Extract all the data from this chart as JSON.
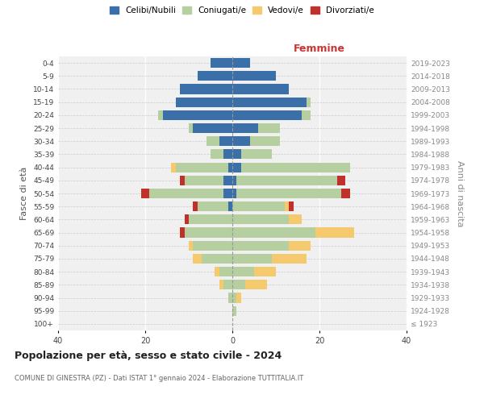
{
  "age_groups": [
    "100+",
    "95-99",
    "90-94",
    "85-89",
    "80-84",
    "75-79",
    "70-74",
    "65-69",
    "60-64",
    "55-59",
    "50-54",
    "45-49",
    "40-44",
    "35-39",
    "30-34",
    "25-29",
    "20-24",
    "15-19",
    "10-14",
    "5-9",
    "0-4"
  ],
  "birth_years": [
    "≤ 1923",
    "1924-1928",
    "1929-1933",
    "1934-1938",
    "1939-1943",
    "1944-1948",
    "1949-1953",
    "1954-1958",
    "1959-1963",
    "1964-1968",
    "1969-1973",
    "1974-1978",
    "1979-1983",
    "1984-1988",
    "1989-1993",
    "1994-1998",
    "1999-2003",
    "2004-2008",
    "2009-2013",
    "2014-2018",
    "2019-2023"
  ],
  "male": {
    "celibi": [
      0,
      0,
      0,
      0,
      0,
      0,
      0,
      0,
      0,
      1,
      2,
      2,
      1,
      2,
      3,
      9,
      16,
      13,
      12,
      8,
      5
    ],
    "coniugati": [
      0,
      0,
      1,
      2,
      3,
      7,
      9,
      11,
      10,
      7,
      17,
      9,
      12,
      3,
      3,
      1,
      1,
      0,
      0,
      0,
      0
    ],
    "vedovi": [
      0,
      0,
      0,
      1,
      1,
      2,
      1,
      0,
      0,
      0,
      0,
      0,
      1,
      0,
      0,
      0,
      0,
      0,
      0,
      0,
      0
    ],
    "divorziati": [
      0,
      0,
      0,
      0,
      0,
      0,
      0,
      1,
      1,
      1,
      2,
      1,
      0,
      0,
      0,
      0,
      0,
      0,
      0,
      0,
      0
    ]
  },
  "female": {
    "nubili": [
      0,
      0,
      0,
      0,
      0,
      0,
      0,
      0,
      0,
      0,
      1,
      1,
      2,
      2,
      4,
      6,
      16,
      17,
      13,
      10,
      4
    ],
    "coniugate": [
      0,
      1,
      1,
      3,
      5,
      9,
      13,
      19,
      13,
      12,
      24,
      23,
      25,
      7,
      7,
      5,
      2,
      1,
      0,
      0,
      0
    ],
    "vedove": [
      0,
      0,
      1,
      5,
      5,
      8,
      5,
      9,
      3,
      1,
      0,
      0,
      0,
      0,
      0,
      0,
      0,
      0,
      0,
      0,
      0
    ],
    "divorziate": [
      0,
      0,
      0,
      0,
      0,
      0,
      0,
      0,
      0,
      1,
      2,
      2,
      0,
      0,
      0,
      0,
      0,
      0,
      0,
      0,
      0
    ]
  },
  "colors": {
    "celibi": "#3a6fa8",
    "coniugati": "#b5cfa0",
    "vedovi": "#f5c96e",
    "divorziati": "#c0312b"
  },
  "title": "Popolazione per età, sesso e stato civile - 2024",
  "subtitle": "COMUNE DI GINESTRA (PZ) - Dati ISTAT 1° gennaio 2024 - Elaborazione TUTTITALIA.IT",
  "xlabel_right": "Femmine",
  "ylabel_left": "Fasce di età",
  "ylabel_right": "Anni di nascita",
  "xlim": 40,
  "legend_labels": [
    "Celibi/Nubili",
    "Coniugati/e",
    "Vedovi/e",
    "Divorziati/e"
  ],
  "background_color": "#ffffff",
  "plot_bg": "#f0f0f0"
}
